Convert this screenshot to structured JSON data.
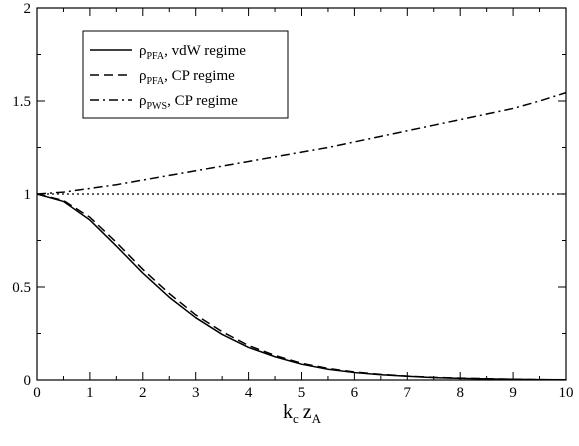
{
  "chart_data": {
    "type": "line",
    "xlabel": {
      "main1": "k",
      "sub1": "c",
      "main2": "z",
      "sub2": "A"
    },
    "ylabel": "",
    "xlim": [
      0,
      10
    ],
    "ylim": [
      0,
      2
    ],
    "x_ticks": [
      "0",
      "1",
      "2",
      "3",
      "4",
      "5",
      "6",
      "7",
      "8",
      "9",
      "10"
    ],
    "y_ticks": [
      "0",
      "0.5",
      "1",
      "1.5",
      "2"
    ],
    "grid": false,
    "legend_position": "top-left",
    "reference_line": {
      "y": 1,
      "style": "dotted"
    },
    "series": [
      {
        "name": "ρ_PFA, vdW regime",
        "legend": {
          "symbol": "ρ",
          "sub": "PFA",
          "suffix": ", vdW regime"
        },
        "style": "solid",
        "x": [
          0,
          0.5,
          1,
          1.5,
          2,
          2.5,
          3,
          3.5,
          4,
          4.5,
          5,
          5.5,
          6,
          6.5,
          7,
          7.5,
          8,
          8.5,
          9,
          9.5,
          10
        ],
        "y": [
          1.0,
          0.96,
          0.86,
          0.72,
          0.575,
          0.445,
          0.335,
          0.245,
          0.175,
          0.125,
          0.085,
          0.058,
          0.04,
          0.028,
          0.02,
          0.013,
          0.009,
          0.006,
          0.004,
          0.002,
          0.001
        ]
      },
      {
        "name": "ρ_PFA, CP regime",
        "legend": {
          "symbol": "ρ",
          "sub": "PFA",
          "suffix": ", CP regime"
        },
        "style": "dashed",
        "x": [
          0,
          0.5,
          1,
          1.5,
          2,
          2.5,
          3,
          3.5,
          4,
          4.5,
          5,
          5.5,
          6,
          6.5,
          7,
          7.5,
          8,
          8.5,
          9,
          9.5,
          10
        ],
        "y": [
          1.0,
          0.965,
          0.875,
          0.74,
          0.595,
          0.465,
          0.35,
          0.26,
          0.185,
          0.132,
          0.09,
          0.062,
          0.043,
          0.03,
          0.021,
          0.014,
          0.01,
          0.007,
          0.004,
          0.002,
          0.001
        ]
      },
      {
        "name": "ρ_PWS, CP regime",
        "legend": {
          "symbol": "ρ",
          "sub": "PWS",
          "suffix": ", CP regime"
        },
        "style": "dash-dot",
        "x": [
          0,
          0.5,
          1,
          1.5,
          2,
          2.5,
          3,
          3.5,
          4,
          4.5,
          5,
          5.5,
          6,
          6.5,
          7,
          7.5,
          8,
          8.5,
          9,
          9.5,
          10
        ],
        "y": [
          1.0,
          1.01,
          1.03,
          1.05,
          1.075,
          1.1,
          1.125,
          1.15,
          1.175,
          1.2,
          1.225,
          1.25,
          1.28,
          1.31,
          1.34,
          1.37,
          1.4,
          1.43,
          1.46,
          1.5,
          1.545
        ]
      }
    ]
  }
}
